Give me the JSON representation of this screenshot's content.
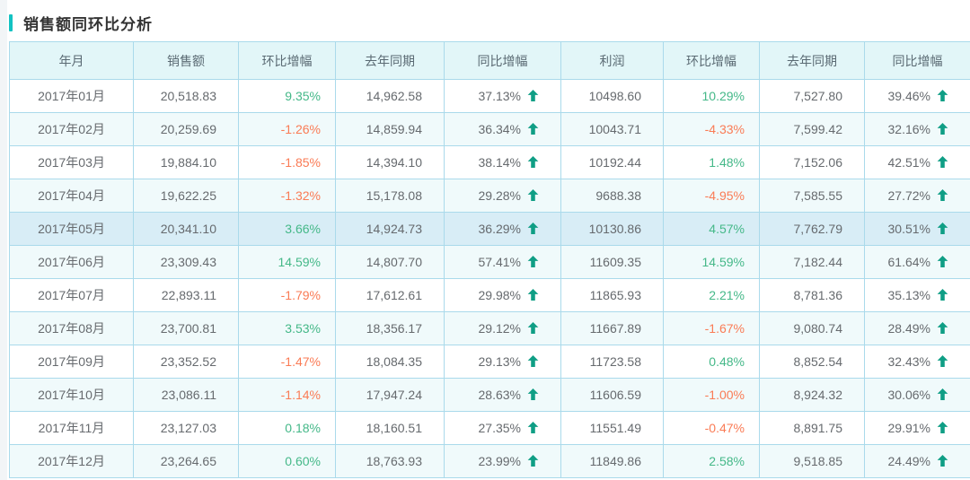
{
  "title": "销售额同环比分析",
  "colors": {
    "accent": "#13c2c2",
    "table_border": "#aadaeb",
    "header_bg": "#e2f6f8",
    "stripe_bg": "#f0fafb",
    "highlight_bg": "#d8edf6",
    "positive_text": "#44b888",
    "negative_text": "#fa7b55",
    "arrow_icon": "#0f9e85"
  },
  "table": {
    "columns": [
      {
        "label": "年月",
        "type": "text"
      },
      {
        "label": "销售额",
        "type": "number"
      },
      {
        "label": "环比增幅",
        "type": "percent"
      },
      {
        "label": "去年同期",
        "type": "number"
      },
      {
        "label": "同比增幅",
        "type": "percent-arrow"
      },
      {
        "label": "利润",
        "type": "number"
      },
      {
        "label": "环比增幅",
        "type": "percent"
      },
      {
        "label": "去年同期",
        "type": "number"
      },
      {
        "label": "同比增幅",
        "type": "percent-arrow"
      }
    ],
    "highlighted_row": 4,
    "rows": [
      [
        "2017年01月",
        "20,518.83",
        "9.35%",
        "14,962.58",
        "37.13%",
        "10498.60",
        "10.29%",
        "7,527.80",
        "39.46%"
      ],
      [
        "2017年02月",
        "20,259.69",
        "-1.26%",
        "14,859.94",
        "36.34%",
        "10043.71",
        "-4.33%",
        "7,599.42",
        "32.16%"
      ],
      [
        "2017年03月",
        "19,884.10",
        "-1.85%",
        "14,394.10",
        "38.14%",
        "10192.44",
        "1.48%",
        "7,152.06",
        "42.51%"
      ],
      [
        "2017年04月",
        "19,622.25",
        "-1.32%",
        "15,178.08",
        "29.28%",
        "9688.38",
        "-4.95%",
        "7,585.55",
        "27.72%"
      ],
      [
        "2017年05月",
        "20,341.10",
        "3.66%",
        "14,924.73",
        "36.29%",
        "10130.86",
        "4.57%",
        "7,762.79",
        "30.51%"
      ],
      [
        "2017年06月",
        "23,309.43",
        "14.59%",
        "14,807.70",
        "57.41%",
        "11609.35",
        "14.59%",
        "7,182.44",
        "61.64%"
      ],
      [
        "2017年07月",
        "22,893.11",
        "-1.79%",
        "17,612.61",
        "29.98%",
        "11865.93",
        "2.21%",
        "8,781.36",
        "35.13%"
      ],
      [
        "2017年08月",
        "23,700.81",
        "3.53%",
        "18,356.17",
        "29.12%",
        "11667.89",
        "-1.67%",
        "9,080.74",
        "28.49%"
      ],
      [
        "2017年09月",
        "23,352.52",
        "-1.47%",
        "18,084.35",
        "29.13%",
        "11723.58",
        "0.48%",
        "8,852.54",
        "32.43%"
      ],
      [
        "2017年10月",
        "23,086.11",
        "-1.14%",
        "17,947.24",
        "28.63%",
        "11606.59",
        "-1.00%",
        "8,924.32",
        "30.06%"
      ],
      [
        "2017年11月",
        "23,127.03",
        "0.18%",
        "18,160.51",
        "27.35%",
        "11551.49",
        "-0.47%",
        "8,891.75",
        "29.91%"
      ],
      [
        "2017年12月",
        "23,264.65",
        "0.60%",
        "18,763.93",
        "23.99%",
        "11849.86",
        "2.58%",
        "9,518.85",
        "24.49%"
      ]
    ]
  }
}
